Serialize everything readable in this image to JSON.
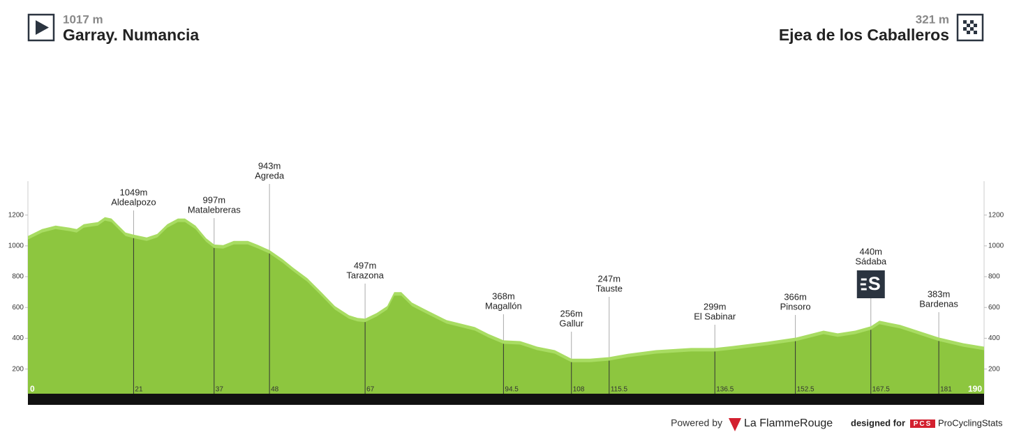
{
  "header": {
    "start_elevation": "1017 m",
    "start_name": "Garray. Numancia",
    "finish_elevation": "321 m",
    "finish_name": "Ejea de los Caballeros"
  },
  "chart_data": {
    "type": "area",
    "x": [
      0,
      2.8,
      5.5,
      8.3,
      9.7,
      11.1,
      13.9,
      15.3,
      16.6,
      18,
      19.4,
      21,
      23.6,
      25.7,
      27.7,
      29.8,
      31.2,
      33.3,
      35.4,
      37,
      38.8,
      40.9,
      43.7,
      45.8,
      48,
      50.6,
      52.7,
      55.5,
      58.3,
      61,
      63.8,
      65.5,
      67,
      69.3,
      71.4,
      72.8,
      74.2,
      76.3,
      79,
      83.2,
      88.8,
      91.5,
      94.5,
      97.8,
      101.2,
      104.7,
      108,
      111.7,
      115.5,
      119.3,
      124.8,
      131.8,
      136.5,
      140,
      147,
      152.7,
      158.1,
      160.9,
      164.4,
      167.5,
      169.2,
      173.3,
      181,
      185.9,
      190
    ],
    "values": [
      1041,
      1086,
      1109,
      1095,
      1086,
      1118,
      1132,
      1164,
      1155,
      1109,
      1064,
      1050,
      1032,
      1055,
      1118,
      1155,
      1155,
      1109,
      1027,
      986,
      982,
      1009,
      1009,
      982,
      950,
      891,
      836,
      768,
      677,
      586,
      527,
      509,
      505,
      541,
      586,
      677,
      677,
      609,
      564,
      495,
      450,
      405,
      364,
      359,
      323,
      300,
      245,
      245,
      255,
      277,
      300,
      314,
      314,
      327,
      355,
      382,
      427,
      409,
      427,
      455,
      491,
      464,
      382,
      345,
      323
    ],
    "color": "#8dc63f",
    "highlight_color": "#a8dc62",
    "xlim": [
      0,
      190
    ],
    "ylim": [
      40,
      1420
    ],
    "yticks": [
      200,
      400,
      600,
      800,
      1000,
      1200
    ],
    "waypoints": {
      "names": [
        "Aldealpozo",
        "Matalebreras",
        "Agreda",
        "Tarazona",
        "Magallón",
        "Gallur",
        "Tauste",
        "El Sabinar",
        "Pinsoro",
        "Sádaba",
        "Bardenas"
      ],
      "elevations": [
        "1049m",
        "997m",
        "943m",
        "497m",
        "368m",
        "256m",
        "247m",
        "299m",
        "366m",
        "440m",
        "383m"
      ],
      "km": [
        21,
        37,
        48,
        67,
        94.5,
        108,
        115.5,
        136.5,
        152.5,
        167.5,
        181
      ]
    }
  },
  "footer": {
    "powered": "Powered by",
    "brand": "La FlammeRouge",
    "designed": "designed for",
    "pcs": "PCS",
    "pcs_name": "ProCyclingStats"
  }
}
